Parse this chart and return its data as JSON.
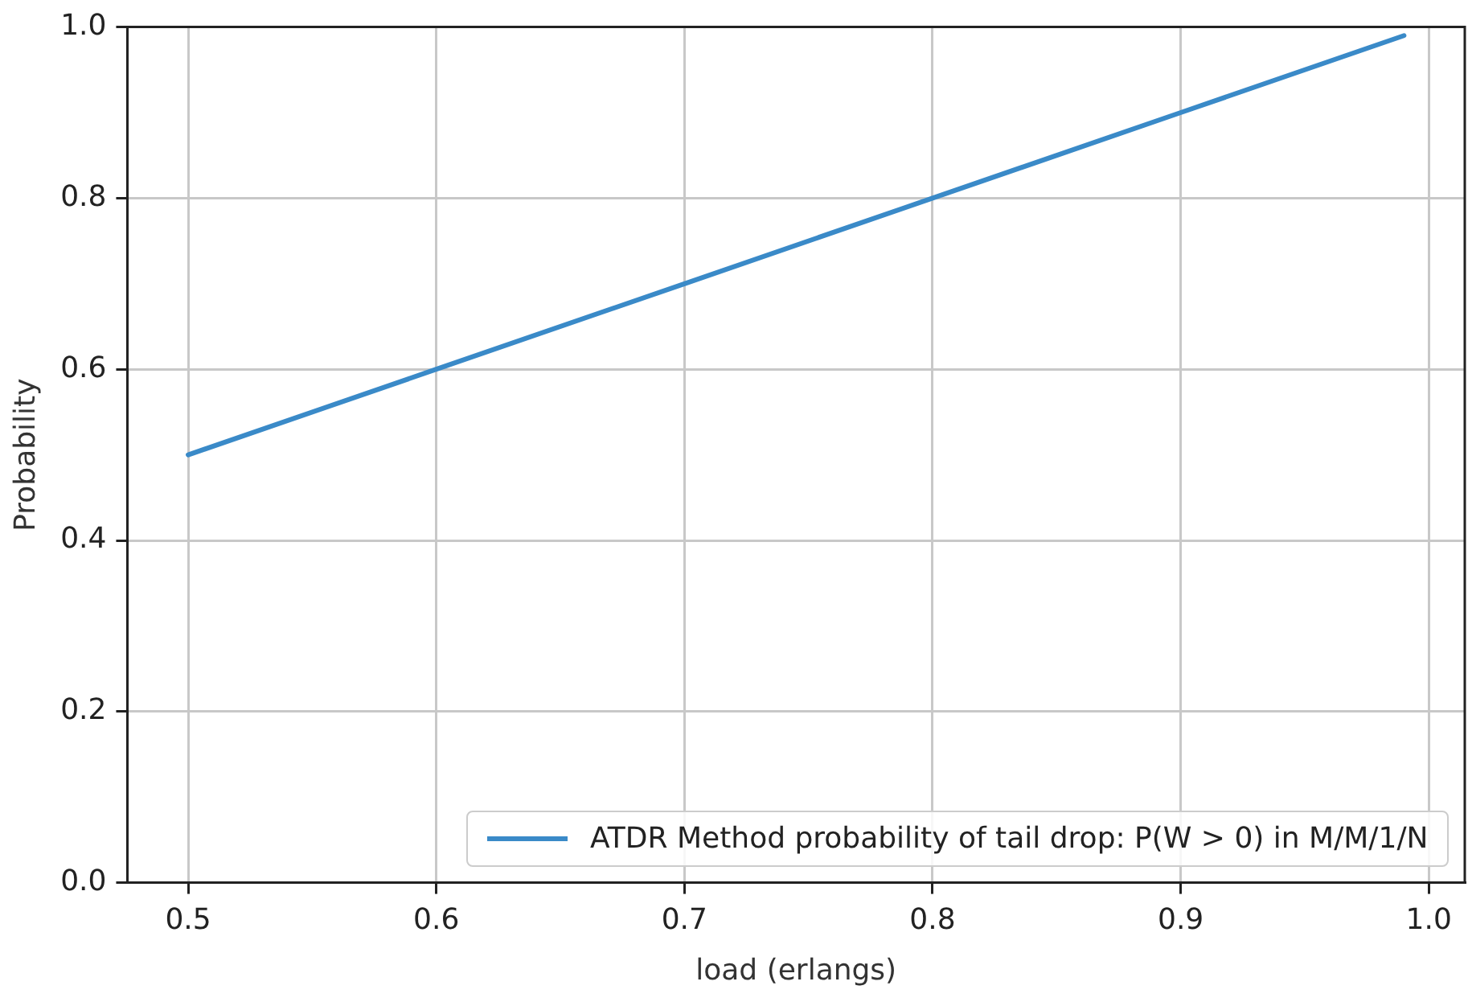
{
  "chart_data": {
    "type": "line",
    "xlabel": "load (erlangs)",
    "ylabel": "Probability",
    "x": [
      0.5,
      0.6,
      0.7,
      0.8,
      0.9,
      0.99
    ],
    "series": [
      {
        "name": "ATDR Method probability of tail drop: P(W > 0) in M/M/1/N",
        "color": "#3a8ac8",
        "values": [
          0.5,
          0.6,
          0.7,
          0.8,
          0.9,
          0.99
        ]
      }
    ],
    "xlim": [
      0.4755,
      1.0145
    ],
    "xticks": [
      0.5,
      0.6,
      0.7,
      0.8,
      0.9,
      {
        "value": 1,
        "label": "1.0"
      }
    ],
    "ylim": [
      0,
      1.0
    ],
    "yticks": [
      {
        "value": 0,
        "label": "0.0"
      },
      0.2,
      0.4,
      0.6,
      0.8,
      {
        "value": 1,
        "label": "1.0"
      }
    ],
    "grid": true,
    "legend": "bottom right",
    "marker": "none",
    "line_style": "solid"
  }
}
